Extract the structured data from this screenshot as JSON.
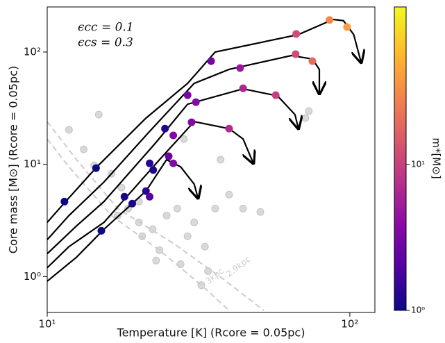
{
  "chart_data": {
    "type": "scatter",
    "xlabel": "Temperature [K] (Rcore = 0.05pc)",
    "ylabel": "Core mass [M⊙] (Rcore = 0.05pc)",
    "annotations": [
      "ϵcc = 0.1",
      "ϵcs = 0.3"
    ],
    "xscale": "log",
    "yscale": "log",
    "xlim": [
      10,
      121
    ],
    "ylim": [
      0.48,
      252
    ],
    "xticks": [
      {
        "value": 10,
        "label": "10¹"
      },
      {
        "value": 100,
        "label": "10²"
      }
    ],
    "yticks": [
      {
        "value": 1,
        "label": "10⁰"
      },
      {
        "value": 10,
        "label": "10¹"
      },
      {
        "value": 100,
        "label": "10²"
      }
    ],
    "background": {
      "color": "#aaaaaa",
      "x": [
        11.8,
        13.2,
        14.3,
        14.8,
        16.3,
        17.6,
        18.5,
        20.1,
        20.6,
        22.3,
        23.5,
        24.8,
        26.9,
        27.6,
        29.1,
        30.6,
        33.2,
        34.0,
        35.9,
        37.4,
        39.9,
        44.4,
        50.6,
        71.3,
        73.2,
        28.3,
        22.9,
        32.3,
        20.1,
        17.1
      ],
      "y": [
        20.3,
        13.6,
        9.8,
        27.7,
        8.25,
        6.2,
        4.04,
        3.04,
        2.29,
        2.64,
        1.72,
        3.5,
        4.04,
        1.29,
        2.29,
        3.04,
        1.85,
        1.12,
        4.04,
        11,
        5.38,
        4.04,
        3.77,
        25.8,
        29.8,
        16.8,
        1.39,
        0.84,
        4.66,
        3.5
      ]
    },
    "distance_curves": [
      {
        "label": "2.9kpc",
        "color": "#cccccc",
        "x": [
          10,
          12.5,
          17.1,
          26.1,
          37.8,
          52.0
        ],
        "y": [
          24,
          11,
          4.04,
          1.98,
          0.97,
          0.5
        ]
      },
      {
        "label": "3kpc",
        "color": "#cccccc",
        "x": [
          10,
          11.8,
          16.3,
          23.5,
          32.3,
          39.9
        ],
        "y": [
          16.8,
          9.5,
          3.5,
          1.72,
          0.84,
          0.5
        ]
      }
    ],
    "tracks": [
      {
        "color": "#000000",
        "x": [
          10,
          11.5,
          14.6,
          21.2,
          29.1,
          35.9,
          67.6,
          88.1,
          95.3,
          103,
          109
        ],
        "y": [
          3.04,
          4.66,
          9.5,
          25.8,
          52.6,
          100,
          143,
          195,
          190,
          143,
          80.7
        ]
      },
      {
        "color": "#000000",
        "x": [
          10,
          11.8,
          15.4,
          21.7,
          30.6,
          39.9,
          64.1,
          75.2,
          79.3,
          79.3
        ],
        "y": [
          2.13,
          3.5,
          6.96,
          19.4,
          52.6,
          70,
          93,
          86.7,
          70,
          42.5
        ]
      },
      {
        "color": "#000000",
        "x": [
          10,
          12.5,
          15.4,
          22.9,
          29.1,
          44.4,
          57.7,
          65.9,
          67.6
        ],
        "y": [
          1.6,
          2.83,
          4.66,
          15.7,
          34.3,
          47,
          40.7,
          27.7,
          20.8
        ]
      },
      {
        "color": "#000000",
        "x": [
          10,
          11.8,
          15.4,
          23.5,
          30.6,
          39.9,
          44.4,
          48.0
        ],
        "y": [
          1.2,
          1.85,
          3.04,
          11,
          24,
          20.8,
          16.8,
          10.2
        ]
      },
      {
        "color": "#000000",
        "x": [
          10,
          12.5,
          15.4,
          21.2,
          24.8,
          27.6,
          30.6,
          31.5
        ],
        "y": [
          0.91,
          1.49,
          2.64,
          5.78,
          11,
          9.5,
          6.66,
          5.0
        ]
      }
    ],
    "cores": {
      "x": [
        11.4,
        14.5,
        15.1,
        24.5,
        21.8,
        22.4,
        18.0,
        19.1,
        21.2,
        21.8,
        34.8,
        29.1,
        31.0,
        26.1,
        30.0,
        25.2,
        26.1,
        43.4,
        44.4,
        39.9,
        56.9,
        66.5,
        66.2,
        75.2,
        85.7,
        97.9
      ],
      "y": [
        4.66,
        9.25,
        2.56,
        20.8,
        10.2,
        8.9,
        5.15,
        4.47,
        5.78,
        5.15,
        83,
        41.3,
        35.8,
        18.1,
        23.7,
        11.8,
        10.2,
        72,
        47.6,
        20.8,
        41.3,
        145,
        95.8,
        83,
        193,
        167
      ],
      "mass": [
        1,
        1,
        1,
        1.2,
        1.3,
        1.2,
        1.1,
        1.1,
        1.3,
        2,
        3,
        3.2,
        3.5,
        3.5,
        3.5,
        2.5,
        3.5,
        5,
        6.5,
        7,
        10,
        12,
        12,
        20,
        30,
        40
      ]
    },
    "colorbar": {
      "label": "m*[M⊙]",
      "scale": "log",
      "lim": [
        1,
        120
      ],
      "ticks": [
        {
          "value": 1,
          "label": "10⁰"
        },
        {
          "value": 10,
          "label": "10¹"
        }
      ],
      "colormap": [
        "#0d0887",
        "#5302a3",
        "#8b0aa5",
        "#b83289",
        "#db5c68",
        "#f48849",
        "#febd2a",
        "#f0f921"
      ]
    }
  }
}
